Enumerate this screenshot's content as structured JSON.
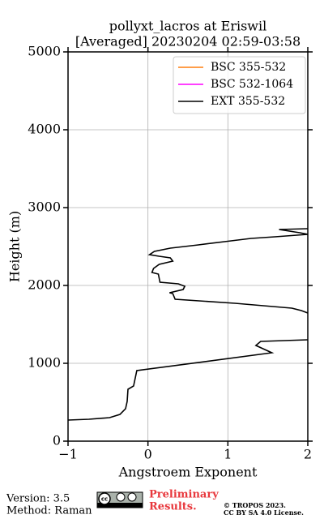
{
  "chart_data": {
    "type": "line",
    "title": [
      "pollyxt_lacros at Eriswil",
      "[Averaged] 20230204 02:59-03:58"
    ],
    "x_label": "Angstroem Exponent",
    "y_label": "Height (m)",
    "xlim": [
      -1,
      2
    ],
    "xticks": [
      {
        "value": -1,
        "label": "−1"
      },
      0,
      1,
      2
    ],
    "ylim": [
      0,
      5000
    ],
    "yticks": [
      0,
      1000,
      2000,
      3000,
      4000,
      5000
    ],
    "grid": true,
    "legend": "upper right",
    "series": [
      {
        "name": "BSC 355-532",
        "color": "#ff7f0e",
        "x": [],
        "y": []
      },
      {
        "name": "BSC 532-1064",
        "color": "#ff00ff",
        "x": [],
        "y": []
      },
      {
        "name": "EXT 355-532",
        "color": "#000000",
        "x": [
          -1,
          -0.74,
          -0.48,
          -0.35,
          -0.28,
          -0.26,
          -0.25,
          -0.18,
          -0.14,
          1.55,
          1.35,
          1.41,
          2,
          null,
          2,
          1.92,
          1.8,
          1.09,
          0.34,
          0.31,
          0.27,
          0.44,
          0.46,
          0.38,
          0.15,
          0.13,
          0.05,
          0.07,
          0.14,
          0.31,
          0.28,
          0.14,
          0.02,
          0.08,
          0.28,
          0.63,
          1.04,
          1.29,
          1.59,
          2,
          1.9,
          1.64,
          2
        ],
        "y": [
          271,
          281,
          302,
          344,
          417,
          510,
          667,
          708,
          906,
          1135,
          1229,
          1281,
          1302,
          null,
          1646,
          1677,
          1708,
          1771,
          1823,
          1896,
          1906,
          1948,
          1990,
          2021,
          2042,
          2146,
          2167,
          2219,
          2271,
          2313,
          2354,
          2375,
          2396,
          2438,
          2479,
          2521,
          2573,
          2604,
          2625,
          2656,
          2677,
          2719,
          2729
        ]
      }
    ]
  },
  "footer": {
    "version": "Version: 3.5",
    "method": "Method: Raman",
    "preliminary": [
      "Preliminary",
      "Results."
    ],
    "copyright": [
      "© TROPOS 2023.",
      "CC BY SA 4.0 License."
    ]
  }
}
